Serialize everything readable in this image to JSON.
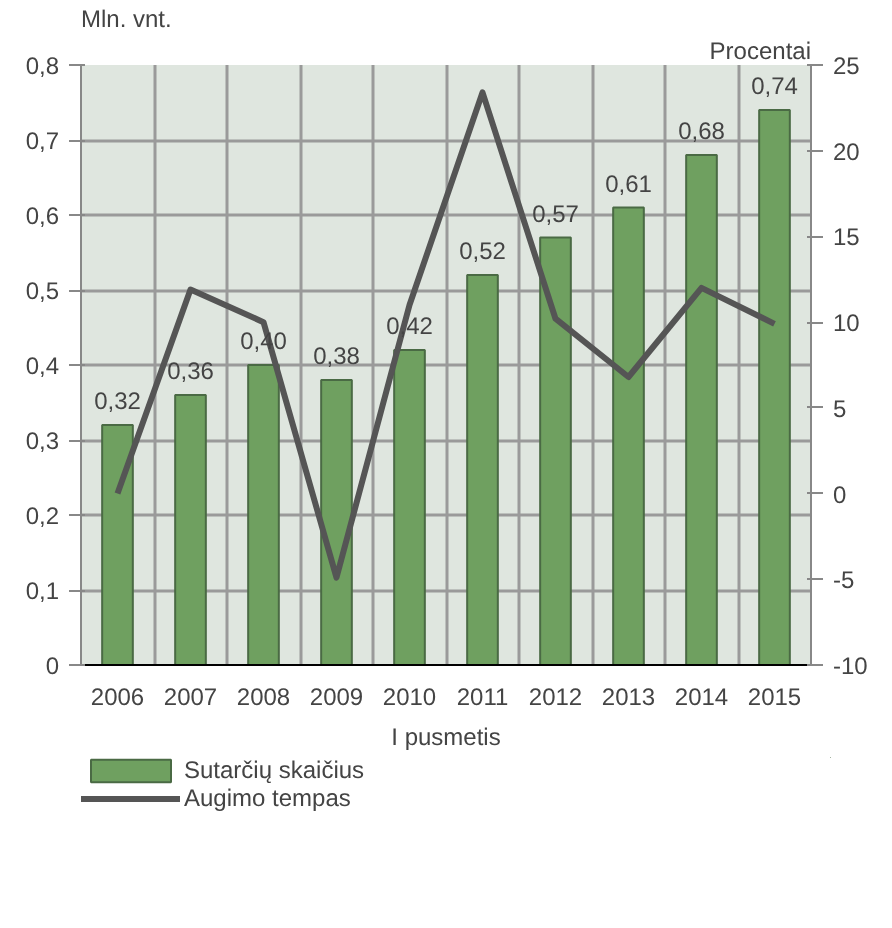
{
  "chart_data": {
    "type": "bar",
    "categories": [
      "2006",
      "2007",
      "2008",
      "2009",
      "2010",
      "2011",
      "2012",
      "2013",
      "2014",
      "2015"
    ],
    "xlabel": "I pusmetis",
    "ylabel": "Mln. vnt.",
    "y2label": "Procentai",
    "series": [
      {
        "name": "Sutarčių skaičius",
        "color": "#6fa060",
        "values": [
          0.32,
          0.36,
          0.4,
          0.38,
          0.42,
          0.52,
          0.57,
          0.61,
          0.68,
          0.74
        ],
        "value_labels": [
          "0,32",
          "0,36",
          "0,40",
          "0,38",
          "0,42",
          "0,52",
          "0,57",
          "0,61",
          "0,68",
          "0,74"
        ]
      },
      {
        "name": "Augimo tempas",
        "type": "line",
        "axis": "y2",
        "color": "#555555",
        "values": [
          0,
          11.9,
          10,
          -4.9,
          11,
          23.4,
          10.2,
          6.8,
          12,
          9.9
        ]
      }
    ],
    "ylim": [
      0,
      0.8
    ],
    "yticks": [
      {
        "value": 0,
        "label": "0"
      },
      {
        "value": 0.1,
        "label": "0,1"
      },
      {
        "value": 0.2,
        "label": "0,2"
      },
      {
        "value": 0.3,
        "label": "0,3"
      },
      {
        "value": 0.4,
        "label": "0,4"
      },
      {
        "value": 0.5,
        "label": "0,5"
      },
      {
        "value": 0.6,
        "label": "0,6"
      },
      {
        "value": 0.7,
        "label": "0,7"
      },
      {
        "value": 0.8,
        "label": "0,8"
      }
    ],
    "y2lim": [
      -10,
      25
    ],
    "y2ticks": [
      -10,
      -5,
      0,
      5,
      10,
      15,
      20,
      25
    ],
    "grid": true,
    "legend": "bottom",
    "line_style": "solid"
  }
}
